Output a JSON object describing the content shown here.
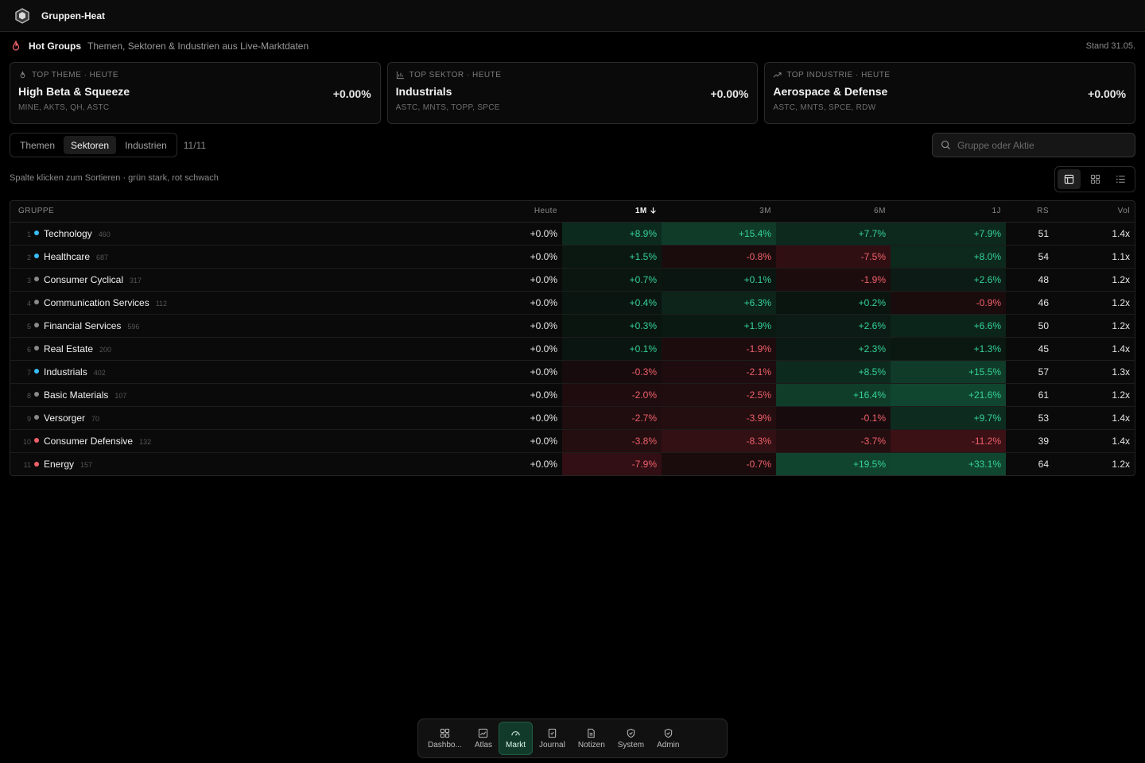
{
  "app": {
    "title": "Gruppen-Heat"
  },
  "hot": {
    "title": "Hot Groups",
    "subtitle": "Themen, Sektoren & Industrien aus Live-Marktdaten",
    "stand": "Stand 31.05."
  },
  "cards": [
    {
      "kicker": "TOP THEME · HEUTE",
      "name": "High Beta & Squeeze",
      "tickers": "MINE, AKTS, QH, ASTC",
      "change": "+0.00%",
      "icon": "flame-icon"
    },
    {
      "kicker": "TOP SEKTOR · HEUTE",
      "name": "Industrials",
      "tickers": "ASTC, MNTS, TOPP, SPCE",
      "change": "+0.00%",
      "icon": "bar-chart-icon"
    },
    {
      "kicker": "TOP INDUSTRIE · HEUTE",
      "name": "Aerospace & Defense",
      "tickers": "ASTC, MNTS, SPCE, RDW",
      "change": "+0.00%",
      "icon": "trend-up-icon"
    }
  ],
  "tabs": [
    "Themen",
    "Sektoren",
    "Industrien"
  ],
  "active_tab": "Sektoren",
  "count": "11/11",
  "search": {
    "placeholder": "Gruppe oder Aktie"
  },
  "hint": "Spalte klicken zum Sortieren · grün stark, rot schwach",
  "table": {
    "headers": {
      "gruppe": "GRUPPE",
      "heute": "Heute",
      "m1": "1M",
      "m3": "3M",
      "m6": "6M",
      "y1": "1J",
      "rs": "RS",
      "vol": "Vol"
    },
    "sort_column": "1M",
    "rows": [
      {
        "rank": "1",
        "name": "Technology",
        "count": "460",
        "dot": "#38bdf8",
        "heute": "+0.0%",
        "m1": "+8.9%",
        "m3": "+15.4%",
        "m6": "+7.7%",
        "y1": "+7.9%",
        "rs": "51",
        "vol": "1.4x"
      },
      {
        "rank": "2",
        "name": "Healthcare",
        "count": "687",
        "dot": "#38bdf8",
        "heute": "+0.0%",
        "m1": "+1.5%",
        "m3": "-0.8%",
        "m6": "-7.5%",
        "y1": "+8.0%",
        "rs": "54",
        "vol": "1.1x"
      },
      {
        "rank": "3",
        "name": "Consumer Cyclical",
        "count": "317",
        "dot": "#8a8a8a",
        "heute": "+0.0%",
        "m1": "+0.7%",
        "m3": "+0.1%",
        "m6": "-1.9%",
        "y1": "+2.6%",
        "rs": "48",
        "vol": "1.2x"
      },
      {
        "rank": "4",
        "name": "Communication Services",
        "count": "112",
        "dot": "#8a8a8a",
        "heute": "+0.0%",
        "m1": "+0.4%",
        "m3": "+6.3%",
        "m6": "+0.2%",
        "y1": "-0.9%",
        "rs": "46",
        "vol": "1.2x"
      },
      {
        "rank": "5",
        "name": "Financial Services",
        "count": "596",
        "dot": "#8a8a8a",
        "heute": "+0.0%",
        "m1": "+0.3%",
        "m3": "+1.9%",
        "m6": "+2.6%",
        "y1": "+6.6%",
        "rs": "50",
        "vol": "1.2x"
      },
      {
        "rank": "6",
        "name": "Real Estate",
        "count": "200",
        "dot": "#8a8a8a",
        "heute": "+0.0%",
        "m1": "+0.1%",
        "m3": "-1.9%",
        "m6": "+2.3%",
        "y1": "+1.3%",
        "rs": "45",
        "vol": "1.4x"
      },
      {
        "rank": "7",
        "name": "Industrials",
        "count": "402",
        "dot": "#38bdf8",
        "heute": "+0.0%",
        "m1": "-0.3%",
        "m3": "-2.1%",
        "m6": "+8.5%",
        "y1": "+15.5%",
        "rs": "57",
        "vol": "1.3x"
      },
      {
        "rank": "8",
        "name": "Basic Materials",
        "count": "107",
        "dot": "#8a8a8a",
        "heute": "+0.0%",
        "m1": "-2.0%",
        "m3": "-2.5%",
        "m6": "+16.4%",
        "y1": "+21.6%",
        "rs": "61",
        "vol": "1.2x"
      },
      {
        "rank": "9",
        "name": "Versorger",
        "count": "70",
        "dot": "#8a8a8a",
        "heute": "+0.0%",
        "m1": "-2.7%",
        "m3": "-3.9%",
        "m6": "-0.1%",
        "y1": "+9.7%",
        "rs": "53",
        "vol": "1.4x"
      },
      {
        "rank": "10",
        "name": "Consumer Defensive",
        "count": "132",
        "dot": "#f0606a",
        "heute": "+0.0%",
        "m1": "-3.8%",
        "m3": "-8.3%",
        "m6": "-3.7%",
        "y1": "-11.2%",
        "rs": "39",
        "vol": "1.4x"
      },
      {
        "rank": "11",
        "name": "Energy",
        "count": "157",
        "dot": "#f0606a",
        "heute": "+0.0%",
        "m1": "-7.9%",
        "m3": "-0.7%",
        "m6": "+19.5%",
        "y1": "+33.1%",
        "rs": "64",
        "vol": "1.2x"
      }
    ]
  },
  "dock": [
    {
      "label": "Dashbo...",
      "icon": "dashboard-icon"
    },
    {
      "label": "Atlas",
      "icon": "chart-icon"
    },
    {
      "label": "Markt",
      "icon": "gauge-icon",
      "active": true
    },
    {
      "label": "Journal",
      "icon": "journal-icon"
    },
    {
      "label": "Notizen",
      "icon": "notes-icon"
    },
    {
      "label": "System",
      "icon": "shield-icon"
    },
    {
      "label": "Admin",
      "icon": "admin-shield-icon"
    }
  ],
  "colors": {
    "positive": "#34d399",
    "negative": "#f0606a",
    "accent": "#1f5c43"
  }
}
